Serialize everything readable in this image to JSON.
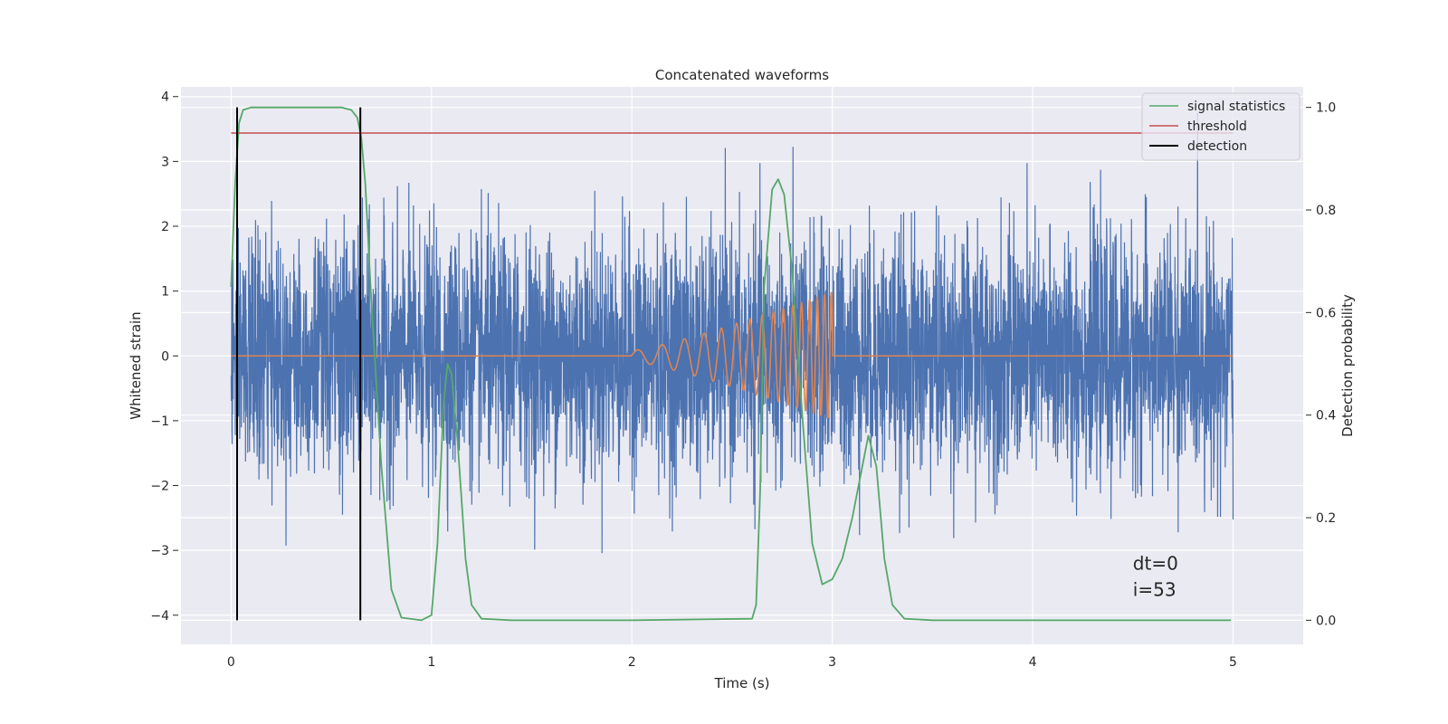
{
  "chart_data": {
    "type": "line",
    "title": "Concatenated waveforms",
    "xlabel": "Time (s)",
    "ylabel": "Whitened strain",
    "y2label": "Detection probability",
    "xlim": [
      -0.25,
      5.35
    ],
    "ylim": [
      -4.45,
      4.15
    ],
    "y2lim": [
      -0.047,
      1.04
    ],
    "xticks": [
      0,
      1,
      2,
      3,
      4,
      5
    ],
    "xtick_labels": [
      "0",
      "1",
      "2",
      "3",
      "4",
      "5"
    ],
    "yticks": [
      -4,
      -3,
      -2,
      -1,
      0,
      1,
      2,
      3,
      4
    ],
    "ytick_labels": [
      "−4",
      "−3",
      "−2",
      "−1",
      "0",
      "1",
      "2",
      "3",
      "4"
    ],
    "y2ticks": [
      0.0,
      0.2,
      0.4,
      0.6,
      0.8,
      1.0
    ],
    "y2tick_labels": [
      "0.0",
      "0.2",
      "0.4",
      "0.6",
      "0.8",
      "1.0"
    ],
    "grid": true,
    "legend_position": "top-right",
    "colors": {
      "background": "#eaeaf2",
      "grid": "#ffffff",
      "strain": "#4c72b0",
      "injection": "#dd8452",
      "signal_statistics": "#55a868",
      "threshold": "#c44e52",
      "detection": "#000000"
    },
    "series": [
      {
        "name": "",
        "axis": "left",
        "description_kind": "noise",
        "x_range": [
          0,
          5
        ],
        "amplitude_sigma": 0.9,
        "color": "#4c72b0"
      },
      {
        "name": "",
        "axis": "left",
        "description_kind": "chirp",
        "x_range": [
          0,
          5
        ],
        "chirp_start": 2.0,
        "chirp_end": 3.0,
        "chirp_amplitude_start": 0.08,
        "chirp_amplitude_end": 1.0,
        "chirp_frequency_start": 8,
        "chirp_frequency_end": 30,
        "color": "#dd8452"
      },
      {
        "name": "signal statistics",
        "axis": "right",
        "x": [
          0,
          0.02,
          0.04,
          0.06,
          0.1,
          0.2,
          0.4,
          0.55,
          0.6,
          0.63,
          0.65,
          0.67,
          0.7,
          0.75,
          0.8,
          0.85,
          0.95,
          1.0,
          1.03,
          1.06,
          1.08,
          1.1,
          1.13,
          1.17,
          1.2,
          1.25,
          1.4,
          2.0,
          2.6,
          2.62,
          2.64,
          2.66,
          2.7,
          2.73,
          2.76,
          2.8,
          2.85,
          2.9,
          2.95,
          3.0,
          3.05,
          3.1,
          3.15,
          3.18,
          3.22,
          3.26,
          3.3,
          3.36,
          3.5,
          4.0,
          4.99
        ],
        "y": [
          0.65,
          0.85,
          0.97,
          0.995,
          1.0,
          1.0,
          1.0,
          1.0,
          0.995,
          0.98,
          0.94,
          0.85,
          0.62,
          0.3,
          0.06,
          0.005,
          0.0,
          0.01,
          0.15,
          0.42,
          0.5,
          0.48,
          0.35,
          0.12,
          0.03,
          0.003,
          0.0,
          0.0,
          0.003,
          0.03,
          0.25,
          0.65,
          0.84,
          0.86,
          0.83,
          0.68,
          0.4,
          0.15,
          0.07,
          0.08,
          0.12,
          0.2,
          0.3,
          0.36,
          0.3,
          0.12,
          0.03,
          0.003,
          0.0,
          0.0,
          0.0
        ],
        "color": "#55a868"
      },
      {
        "name": "threshold",
        "axis": "right",
        "x": [
          0,
          5
        ],
        "y": [
          0.95,
          0.95
        ],
        "color": "#c44e52"
      },
      {
        "name": "detection",
        "axis": "right",
        "kind": "vlines",
        "x": [
          0.03,
          0.645
        ],
        "ymin": 0.0,
        "ymax": 1.0,
        "color": "#000000"
      }
    ],
    "annotations": [
      {
        "text": "dt=0",
        "x": 4.5,
        "y": -3.3
      },
      {
        "text": "i=53",
        "x": 4.5,
        "y": -3.7
      }
    ]
  }
}
